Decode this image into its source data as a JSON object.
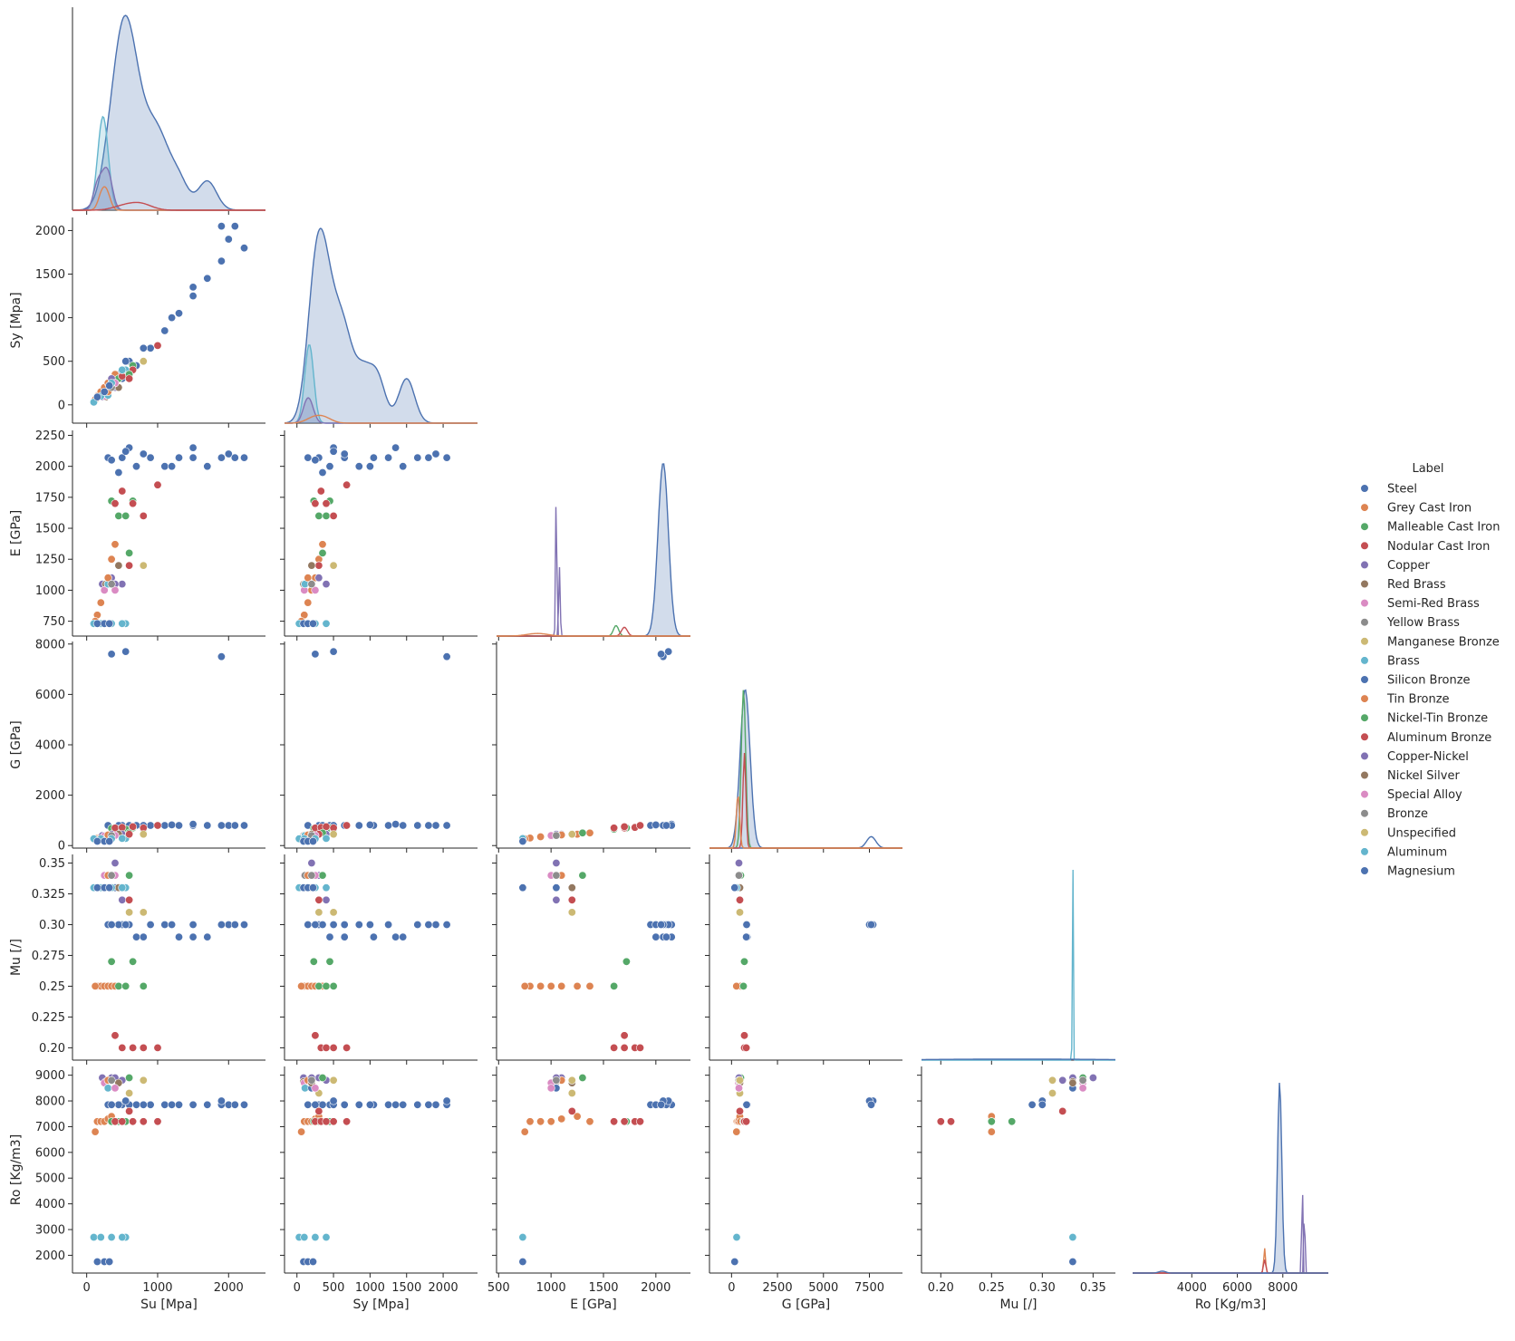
{
  "chart_data": {
    "type": "scatter",
    "subtype": "pairplot-corner",
    "variables": [
      "Su [Mpa]",
      "Sy [Mpa]",
      "E [GPa]",
      "G [GPa]",
      "Mu [/]",
      "Ro [Kg/m3]"
    ],
    "axes": {
      "Su [Mpa]": {
        "range": [
          -200,
          2520
        ],
        "ticks": [
          0,
          1000,
          2000
        ]
      },
      "Sy [Mpa]": {
        "range": [
          -210,
          2150
        ],
        "ticks": [
          0,
          500,
          1000,
          1500,
          2000
        ]
      },
      "E [GPa]": {
        "range": [
          630,
          2290
        ],
        "ticks": [
          750,
          1000,
          1250,
          1500,
          1750,
          2000,
          2250
        ]
      },
      "G [GPa]": {
        "range": [
          -100,
          8100
        ],
        "ticks": [
          0,
          2000,
          4000,
          6000,
          8000
        ]
      },
      "Mu [/]": {
        "range": [
          0.19,
          0.357
        ],
        "ticks": [
          0.2,
          0.225,
          0.25,
          0.275,
          0.3,
          0.325,
          0.35
        ]
      },
      "Ro [Kg/m3]": {
        "range": [
          1310,
          9340
        ],
        "ticks": [
          2000,
          3000,
          4000,
          5000,
          6000,
          7000,
          8000,
          9000
        ]
      }
    },
    "x_axes": {
      "Su [Mpa]": {
        "range": [
          -200,
          2520
        ],
        "ticks": [
          0,
          1000,
          2000
        ]
      },
      "Sy [Mpa]": {
        "range": [
          -170,
          2470
        ],
        "ticks": [
          0,
          500,
          1000,
          1500,
          2000
        ]
      },
      "E [GPa]": {
        "range": [
          480,
          2330
        ],
        "ticks": [
          500,
          1000,
          1500,
          2000
        ]
      },
      "G [GPa]": {
        "range": [
          -1200,
          9300
        ],
        "ticks": [
          0,
          2500,
          5000,
          7500
        ]
      },
      "Mu [/]": {
        "range": [
          0.181,
          0.372
        ],
        "ticks": [
          0.2,
          0.25,
          0.3,
          0.35
        ]
      },
      "Ro [Kg/m3]": {
        "range": [
          1400,
          10000
        ],
        "ticks": [
          4000,
          6000,
          8000
        ]
      }
    },
    "legend": {
      "title": "Label",
      "placement": "right",
      "entries": [
        {
          "name": "Steel",
          "color": "#4c72b0"
        },
        {
          "name": "Grey Cast Iron",
          "color": "#dd8452"
        },
        {
          "name": "Malleable Cast Iron",
          "color": "#55a868"
        },
        {
          "name": "Nodular Cast Iron",
          "color": "#c44e52"
        },
        {
          "name": "Copper",
          "color": "#8172b3"
        },
        {
          "name": "Red Brass",
          "color": "#937860"
        },
        {
          "name": "Semi-Red Brass",
          "color": "#da8bc3"
        },
        {
          "name": "Yellow Brass",
          "color": "#8c8c8c"
        },
        {
          "name": "Manganese Bronze",
          "color": "#ccb974"
        },
        {
          "name": "Brass",
          "color": "#64b5cd"
        },
        {
          "name": "Silicon Bronze",
          "color": "#4c72b0"
        },
        {
          "name": "Tin Bronze",
          "color": "#dd8452"
        },
        {
          "name": "Nickel-Tin Bronze",
          "color": "#55a868"
        },
        {
          "name": "Aluminum Bronze",
          "color": "#c44e52"
        },
        {
          "name": "Copper-Nickel",
          "color": "#8172b3"
        },
        {
          "name": "Nickel Silver",
          "color": "#937860"
        },
        {
          "name": "Special Alloy",
          "color": "#da8bc3"
        },
        {
          "name": "Bronze",
          "color": "#8c8c8c"
        },
        {
          "name": "Unspecified",
          "color": "#ccb974"
        },
        {
          "name": "Aluminum",
          "color": "#64b5cd"
        },
        {
          "name": "Magnesium",
          "color": "#4c72b0"
        }
      ]
    },
    "series": [
      {
        "name": "Steel",
        "color": "#4c72b0",
        "points": [
          [
            300,
            150,
            2070,
            800,
            0.3,
            7850
          ],
          [
            500,
            300,
            2070,
            800,
            0.3,
            7850
          ],
          [
            700,
            450,
            2000,
            800,
            0.29,
            7850
          ],
          [
            900,
            650,
            2070,
            800,
            0.3,
            7850
          ],
          [
            1100,
            850,
            2000,
            800,
            0.3,
            7850
          ],
          [
            1300,
            1050,
            2070,
            800,
            0.29,
            7850
          ],
          [
            1500,
            1250,
            2070,
            800,
            0.3,
            7850
          ],
          [
            1700,
            1450,
            2000,
            800,
            0.29,
            7850
          ],
          [
            1900,
            1650,
            2070,
            800,
            0.3,
            7850
          ],
          [
            2000,
            1900,
            2100,
            800,
            0.3,
            7850
          ],
          [
            2090,
            2050,
            2070,
            800,
            0.3,
            7850
          ],
          [
            2220,
            1800,
            2070,
            800,
            0.3,
            7850
          ],
          [
            1500,
            1350,
            2150,
            850,
            0.29,
            7850
          ],
          [
            600,
            500,
            2150,
            800,
            0.3,
            7850
          ],
          [
            450,
            350,
            1950,
            800,
            0.3,
            7850
          ],
          [
            800,
            650,
            2100,
            800,
            0.29,
            7850
          ],
          [
            1200,
            1000,
            2000,
            820,
            0.3,
            7850
          ],
          [
            550,
            500,
            2120,
            7700,
            0.3,
            8000
          ],
          [
            1900,
            2050,
            2070,
            7500,
            0.3,
            8000
          ],
          [
            350,
            250,
            2050,
            7600,
            0.3,
            7850
          ]
        ]
      },
      {
        "name": "Grey Cast Iron",
        "color": "#dd8452",
        "points": [
          [
            150,
            100,
            800,
            300,
            0.25,
            7200
          ],
          [
            200,
            150,
            900,
            350,
            0.25,
            7200
          ],
          [
            250,
            200,
            1000,
            400,
            0.25,
            7200
          ],
          [
            300,
            250,
            1100,
            420,
            0.25,
            7300
          ],
          [
            350,
            300,
            1250,
            450,
            0.25,
            7400
          ],
          [
            400,
            350,
            1370,
            500,
            0.25,
            7200
          ],
          [
            120,
            60,
            750,
            270,
            0.25,
            6800
          ]
        ]
      },
      {
        "name": "Malleable Cast Iron",
        "color": "#55a868",
        "points": [
          [
            350,
            230,
            1720,
            680,
            0.27,
            7200
          ],
          [
            450,
            300,
            1600,
            650,
            0.25,
            7200
          ],
          [
            550,
            400,
            1600,
            650,
            0.25,
            7200
          ],
          [
            650,
            450,
            1720,
            700,
            0.27,
            7200
          ],
          [
            800,
            500,
            1600,
            650,
            0.25,
            7200
          ]
        ]
      },
      {
        "name": "Nodular Cast Iron",
        "color": "#c44e52",
        "points": [
          [
            400,
            250,
            1700,
            700,
            0.21,
            7200
          ],
          [
            500,
            330,
            1800,
            720,
            0.2,
            7200
          ],
          [
            650,
            400,
            1700,
            750,
            0.2,
            7200
          ],
          [
            800,
            500,
            1600,
            700,
            0.2,
            7200
          ],
          [
            1000,
            680,
            1850,
            800,
            0.2,
            7200
          ]
        ]
      },
      {
        "name": "Copper",
        "color": "#8172b3",
        "points": [
          [
            220,
            90,
            1050,
            400,
            0.33,
            8900
          ],
          [
            350,
            300,
            1100,
            450,
            0.34,
            8900
          ],
          [
            500,
            400,
            1050,
            450,
            0.32,
            8800
          ]
        ]
      },
      {
        "name": "Red Brass",
        "color": "#937860",
        "points": [
          [
            270,
            90,
            1050,
            400,
            0.33,
            8750
          ]
        ]
      },
      {
        "name": "Semi-Red Brass",
        "color": "#da8bc3",
        "points": [
          [
            250,
            100,
            1000,
            380,
            0.34,
            8700
          ]
        ]
      },
      {
        "name": "Yellow Brass",
        "color": "#8c8c8c",
        "points": [
          [
            300,
            110,
            1050,
            400,
            0.34,
            8500
          ]
        ]
      },
      {
        "name": "Manganese Bronze",
        "color": "#ccb974",
        "points": [
          [
            600,
            300,
            1200,
            450,
            0.31,
            8300
          ]
        ]
      },
      {
        "name": "Brass",
        "color": "#64b5cd",
        "points": [
          [
            300,
            110,
            1050,
            400,
            0.33,
            8500
          ],
          [
            550,
            400,
            730,
            280,
            0.33,
            2700
          ]
        ]
      },
      {
        "name": "Silicon Bronze",
        "color": "#4c72b0",
        "points": [
          [
            400,
            200,
            1050,
            400,
            0.33,
            8500
          ]
        ]
      },
      {
        "name": "Tin Bronze",
        "color": "#dd8452",
        "points": [
          [
            300,
            150,
            1100,
            420,
            0.34,
            8800
          ]
        ]
      },
      {
        "name": "Nickel-Tin Bronze",
        "color": "#55a868",
        "points": [
          [
            600,
            350,
            1300,
            500,
            0.34,
            8900
          ]
        ]
      },
      {
        "name": "Aluminum Bronze",
        "color": "#c44e52",
        "points": [
          [
            600,
            300,
            1200,
            450,
            0.32,
            7600
          ]
        ]
      },
      {
        "name": "Copper-Nickel",
        "color": "#8172b3",
        "points": [
          [
            400,
            200,
            1050,
            400,
            0.35,
            8900
          ]
        ]
      },
      {
        "name": "Nickel Silver",
        "color": "#937860",
        "points": [
          [
            450,
            200,
            1200,
            450,
            0.33,
            8700
          ]
        ]
      },
      {
        "name": "Special Alloy",
        "color": "#da8bc3",
        "points": [
          [
            400,
            250,
            1000,
            400,
            0.34,
            8500
          ]
        ]
      },
      {
        "name": "Bronze",
        "color": "#8c8c8c",
        "points": [
          [
            350,
            200,
            1050,
            400,
            0.34,
            8800
          ]
        ]
      },
      {
        "name": "Unspecified",
        "color": "#ccb974",
        "points": [
          [
            800,
            500,
            1200,
            450,
            0.31,
            8800
          ]
        ]
      },
      {
        "name": "Aluminum",
        "color": "#64b5cd",
        "points": [
          [
            100,
            30,
            730,
            270,
            0.33,
            2700
          ],
          [
            200,
            100,
            730,
            270,
            0.33,
            2700
          ],
          [
            350,
            250,
            730,
            270,
            0.33,
            2700
          ],
          [
            500,
            400,
            730,
            280,
            0.33,
            2700
          ]
        ]
      },
      {
        "name": "Magnesium",
        "color": "#4c72b0",
        "points": [
          [
            150,
            90,
            730,
            170,
            0.33,
            1750
          ],
          [
            250,
            150,
            730,
            170,
            0.33,
            1750
          ],
          [
            320,
            220,
            730,
            170,
            0.33,
            1750
          ]
        ]
      }
    ]
  }
}
